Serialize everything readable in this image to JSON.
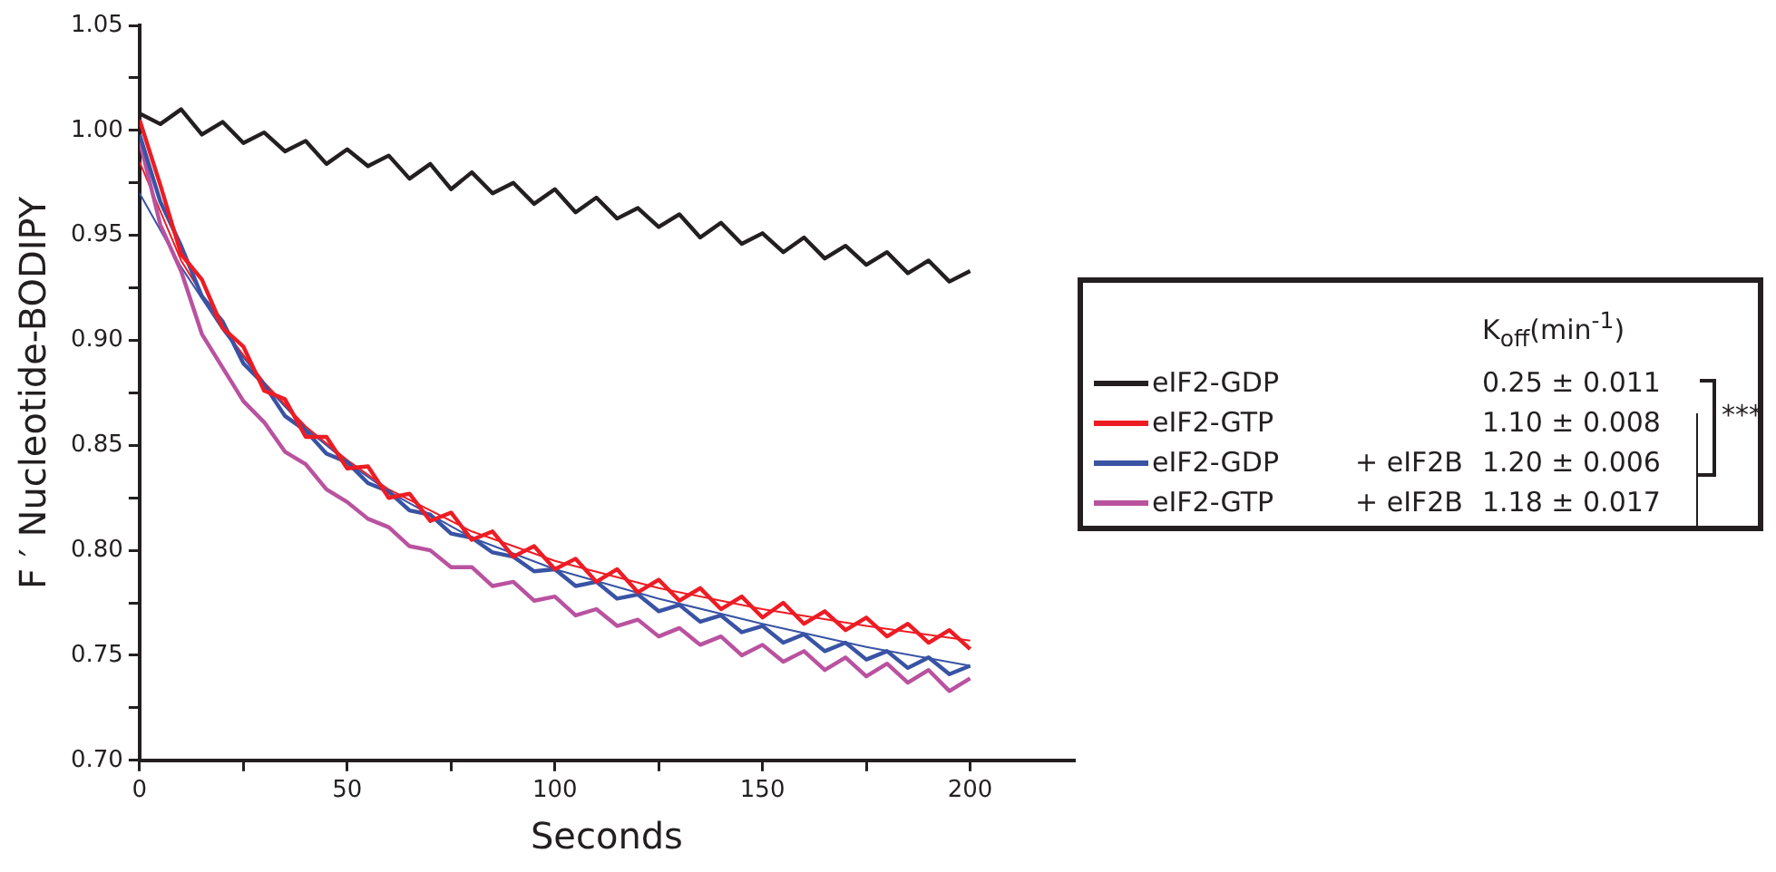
{
  "chart_data": {
    "type": "line",
    "xlabel": "Seconds",
    "ylabel": "F ′ Nucleotide-BODIPY",
    "legend_title": "K$_{off}$(min$^{-1}$)",
    "x": [
      0,
      5,
      10,
      15,
      20,
      25,
      30,
      35,
      40,
      45,
      50,
      55,
      60,
      65,
      70,
      75,
      80,
      85,
      90,
      95,
      100,
      105,
      110,
      115,
      120,
      125,
      130,
      135,
      140,
      145,
      150,
      155,
      160,
      165,
      170,
      175,
      180,
      185,
      190,
      195,
      200
    ],
    "series": [
      {
        "name": "eIF2-GDP",
        "color": "#231f20",
        "values": [
          1.008,
          1.003,
          1.01,
          0.998,
          1.004,
          0.994,
          0.999,
          0.99,
          0.995,
          0.984,
          0.991,
          0.983,
          0.988,
          0.977,
          0.984,
          0.972,
          0.98,
          0.97,
          0.975,
          0.965,
          0.972,
          0.961,
          0.968,
          0.958,
          0.963,
          0.954,
          0.96,
          0.949,
          0.956,
          0.946,
          0.951,
          0.942,
          0.949,
          0.939,
          0.945,
          0.936,
          0.942,
          0.932,
          0.938,
          0.928,
          0.933
        ]
      },
      {
        "name": "eIF2-GTP",
        "color": "#ed1c24",
        "values": [
          1.005,
          0.974,
          0.941,
          0.929,
          0.906,
          0.897,
          0.876,
          0.872,
          0.854,
          0.854,
          0.839,
          0.84,
          0.825,
          0.827,
          0.814,
          0.818,
          0.805,
          0.809,
          0.797,
          0.802,
          0.791,
          0.796,
          0.785,
          0.791,
          0.78,
          0.786,
          0.776,
          0.782,
          0.772,
          0.778,
          0.768,
          0.775,
          0.765,
          0.771,
          0.762,
          0.768,
          0.759,
          0.765,
          0.756,
          0.762,
          0.753
        ]
      },
      {
        "name": "eIF2-GDP",
        "color": "#3953a4",
        "values": [
          0.998,
          0.966,
          0.945,
          0.921,
          0.909,
          0.889,
          0.879,
          0.864,
          0.857,
          0.846,
          0.842,
          0.832,
          0.828,
          0.819,
          0.817,
          0.808,
          0.806,
          0.799,
          0.797,
          0.79,
          0.791,
          0.783,
          0.785,
          0.777,
          0.779,
          0.771,
          0.774,
          0.766,
          0.769,
          0.761,
          0.764,
          0.756,
          0.76,
          0.752,
          0.756,
          0.748,
          0.752,
          0.744,
          0.749,
          0.741,
          0.745
        ]
      },
      {
        "name": "eIF2-GTP",
        "color": "#b9529f",
        "values": [
          0.995,
          0.955,
          0.933,
          0.903,
          0.887,
          0.871,
          0.861,
          0.847,
          0.841,
          0.829,
          0.823,
          0.815,
          0.811,
          0.802,
          0.8,
          0.792,
          0.792,
          0.783,
          0.785,
          0.776,
          0.778,
          0.769,
          0.772,
          0.764,
          0.767,
          0.759,
          0.763,
          0.755,
          0.759,
          0.75,
          0.755,
          0.747,
          0.752,
          0.743,
          0.749,
          0.74,
          0.746,
          0.737,
          0.743,
          0.733,
          0.739
        ]
      },
      {
        "color": "#ed1c24",
        "x": [
          0,
          10,
          20,
          30,
          40,
          50,
          60,
          80,
          100,
          125,
          150,
          175,
          200
        ],
        "values": [
          0.985,
          0.938,
          0.906,
          0.88,
          0.859,
          0.843,
          0.829,
          0.809,
          0.795,
          0.782,
          0.772,
          0.764,
          0.757
        ]
      },
      {
        "color": "#3953a4",
        "x": [
          0,
          10,
          20,
          30,
          40,
          50,
          60,
          80,
          100,
          125,
          150,
          175,
          200
        ],
        "values": [
          0.97,
          0.935,
          0.905,
          0.879,
          0.858,
          0.842,
          0.828,
          0.806,
          0.791,
          0.777,
          0.765,
          0.754,
          0.745
        ]
      }
    ],
    "xlim": [
      0,
      225
    ],
    "xticks": [
      0,
      {
        "value": 25,
        "label": null
      },
      50,
      {
        "value": 75,
        "label": null
      },
      100,
      {
        "value": 125,
        "label": null
      },
      150,
      {
        "value": 175,
        "label": null
      },
      200
    ],
    "ylim": [
      0.7,
      1.05
    ],
    "yticks": [
      {
        "value": 0.7,
        "label": "0.70"
      },
      {
        "value": 0.725,
        "label": null
      },
      {
        "value": 0.75,
        "label": "0.75"
      },
      {
        "value": 0.775,
        "label": null
      },
      {
        "value": 0.8,
        "label": "0.80"
      },
      {
        "value": 0.825,
        "label": null
      },
      {
        "value": 0.85,
        "label": "0.85"
      },
      {
        "value": 0.875,
        "label": null
      },
      {
        "value": 0.9,
        "label": "0.90"
      },
      {
        "value": 0.925,
        "label": null
      },
      {
        "value": 0.95,
        "label": "0.95"
      },
      {
        "value": 0.975,
        "label": null
      },
      {
        "value": 1.0,
        "label": "1.00"
      },
      {
        "value": 1.025,
        "label": null
      },
      {
        "value": 1.05,
        "label": "1.05"
      }
    ],
    "annotations": [
      "+ eIF2B",
      "+ eIF2B",
      "0.25 ± 0.011",
      "1.10 ± 0.008",
      "1.20 ± 0.006",
      "1.18 ± 0.017",
      "***"
    ],
    "legend": "right",
    "grid": false,
    "marker": "none",
    "line_style": "solid"
  }
}
